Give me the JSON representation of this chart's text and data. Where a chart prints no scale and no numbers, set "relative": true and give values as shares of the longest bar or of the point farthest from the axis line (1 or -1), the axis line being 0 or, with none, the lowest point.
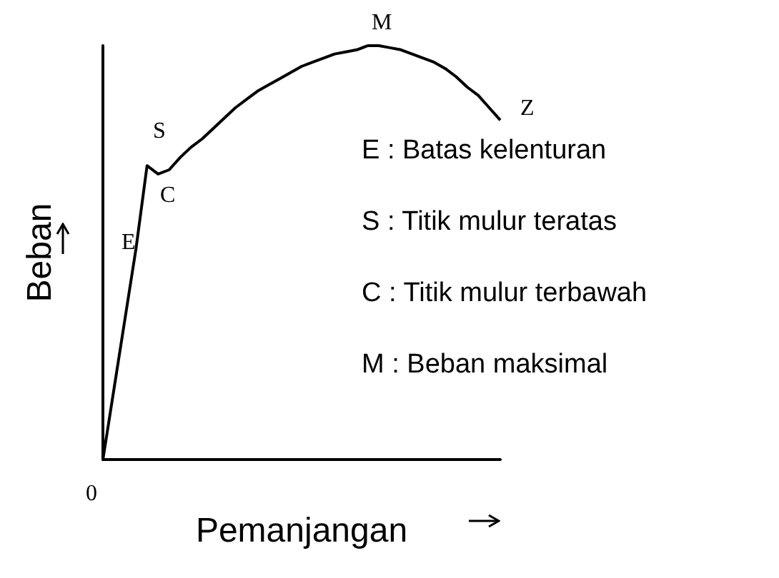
{
  "chart_data": {
    "type": "line",
    "relative": true,
    "xlabel": "Pemanjangan",
    "ylabel": "Beban",
    "color": "#000000",
    "marker": "none",
    "grid": false,
    "categories": [
      null,
      null,
      null,
      null,
      null,
      null,
      null,
      null,
      null,
      null,
      null,
      null,
      null,
      null,
      null,
      null,
      null,
      null,
      null,
      null,
      null,
      null,
      null,
      null,
      null,
      null,
      null,
      null,
      null,
      null,
      null,
      null,
      null,
      null,
      null,
      null,
      null
    ],
    "values": [
      0,
      0.17,
      0.34,
      0.51,
      0.71,
      0.69,
      0.7,
      0.73,
      0.755,
      0.775,
      0.8,
      0.825,
      0.85,
      0.87,
      0.89,
      0.905,
      0.92,
      0.935,
      0.95,
      0.96,
      0.97,
      0.98,
      0.985,
      0.99,
      1,
      1,
      0.995,
      0.99,
      0.98,
      0.97,
      0.96,
      0.945,
      0.925,
      0.9,
      0.88,
      0.85,
      0.82
    ],
    "annotations": [
      "0",
      "E",
      "S",
      "C",
      "M",
      "Z",
      "E : Batas kelenturan",
      "S : Titik mulur teratas",
      "C : Titik mulur terbawah",
      "M : Beban maksimal"
    ]
  }
}
